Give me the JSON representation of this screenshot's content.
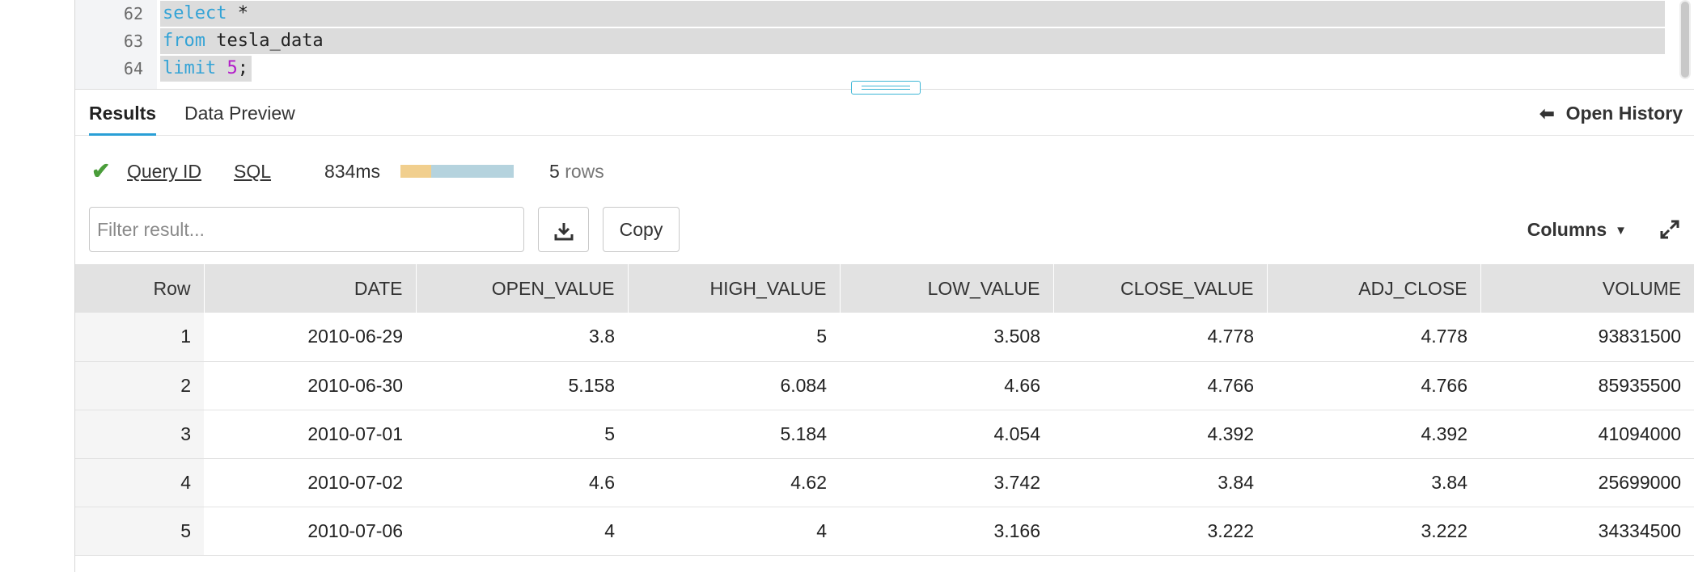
{
  "editor": {
    "lines": [
      {
        "number": "62",
        "keyword": "select",
        "rest": " *"
      },
      {
        "number": "63",
        "keyword": "from",
        "rest": " tesla_data"
      },
      {
        "number": "64",
        "keyword": "limit",
        "number_value": "5",
        "suffix": ";"
      }
    ]
  },
  "tabs": {
    "results": "Results",
    "data_preview": "Data Preview",
    "open_history": "Open History"
  },
  "status": {
    "query_id": "Query ID",
    "sql": "SQL",
    "duration": "834ms",
    "duration_split_fraction": 0.27,
    "row_count": "5",
    "row_unit": "rows"
  },
  "toolbar": {
    "filter_placeholder": "Filter result...",
    "copy_label": "Copy",
    "columns_label": "Columns"
  },
  "table": {
    "headers": [
      "Row",
      "DATE",
      "OPEN_VALUE",
      "HIGH_VALUE",
      "LOW_VALUE",
      "CLOSE_VALUE",
      "ADJ_CLOSE",
      "VOLUME"
    ],
    "rows": [
      [
        "1",
        "2010-06-29",
        "3.8",
        "5",
        "3.508",
        "4.778",
        "4.778",
        "93831500"
      ],
      [
        "2",
        "2010-06-30",
        "5.158",
        "6.084",
        "4.66",
        "4.766",
        "4.766",
        "85935500"
      ],
      [
        "3",
        "2010-07-01",
        "5",
        "5.184",
        "4.054",
        "4.392",
        "4.392",
        "41094000"
      ],
      [
        "4",
        "2010-07-02",
        "4.6",
        "4.62",
        "3.742",
        "3.84",
        "3.84",
        "25699000"
      ],
      [
        "5",
        "2010-07-06",
        "4",
        "4",
        "3.166",
        "3.222",
        "3.222",
        "34334500"
      ]
    ]
  },
  "colors": {
    "accent": "#2a9fd6",
    "success": "#4a9d3a",
    "keyword": "#33a3d6",
    "number": "#b21bc9",
    "timing_compile": "#f1cf8e",
    "timing_execute": "#b5d3de"
  },
  "icons": {
    "check": "check-icon",
    "back_arrow": "arrow-left-icon",
    "download": "download-icon",
    "caret": "caret-down-icon",
    "expand": "expand-icon"
  }
}
